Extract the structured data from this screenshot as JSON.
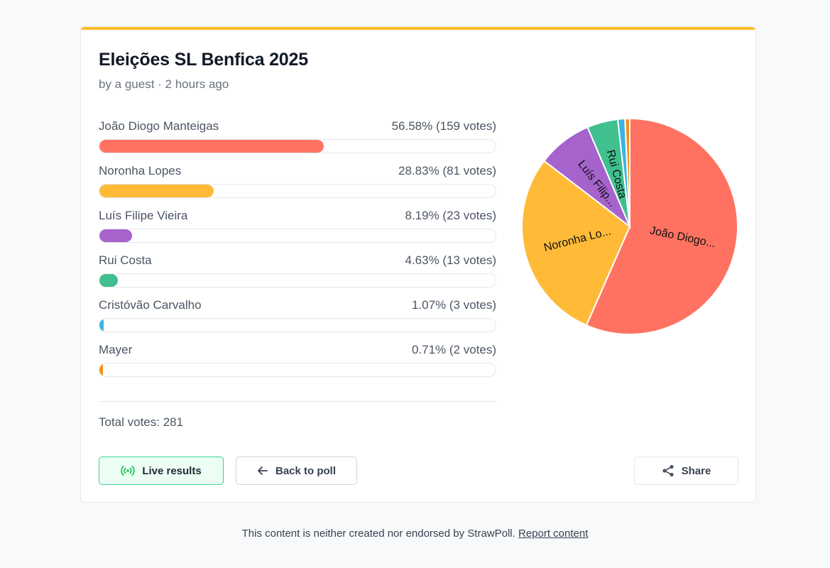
{
  "poll": {
    "title": "Eleições SL Benfica 2025",
    "subtitle": "by a guest · 2 hours ago",
    "accent_color": "#fbbf24",
    "total_label": "Total votes: 281"
  },
  "options": [
    {
      "name": "João Diogo Manteigas",
      "stats": "56.58% (159 votes)",
      "percent": 56.58,
      "votes": 159,
      "color": "#ff7262",
      "pie_label": "João Diogo..."
    },
    {
      "name": "Noronha Lopes",
      "stats": "28.83% (81 votes)",
      "percent": 28.83,
      "votes": 81,
      "color": "#ffbb38",
      "pie_label": "Noronha Lo..."
    },
    {
      "name": "Luís Filipe Vieira",
      "stats": "8.19% (23 votes)",
      "percent": 8.19,
      "votes": 23,
      "color": "#a663cc",
      "pie_label": "Luís Filip..."
    },
    {
      "name": "Rui Costa",
      "stats": "4.63% (13 votes)",
      "percent": 4.63,
      "votes": 13,
      "color": "#40bf8f",
      "pie_label": "Rui Costa"
    },
    {
      "name": "Cristóvão Carvalho",
      "stats": "1.07% (3 votes)",
      "percent": 1.07,
      "votes": 3,
      "color": "#3ab4e6",
      "pie_label": ""
    },
    {
      "name": "Mayer",
      "stats": "0.71% (2 votes)",
      "percent": 0.71,
      "votes": 2,
      "color": "#f7901e",
      "pie_label": ""
    }
  ],
  "chart_data": {
    "type": "pie",
    "title": "",
    "categories": [
      "João Diogo Manteigas",
      "Noronha Lopes",
      "Luís Filipe Vieira",
      "Rui Costa",
      "Cristóvão Carvalho",
      "Mayer"
    ],
    "values": [
      159,
      81,
      23,
      13,
      3,
      2
    ],
    "slice_labels": [
      "João Diogo...",
      "Noronha Lo...",
      "Luís Filip...",
      "Rui Costa",
      "",
      ""
    ]
  },
  "buttons": {
    "live": "Live results",
    "back": "Back to poll",
    "share": "Share"
  },
  "footer": {
    "text": "This content is neither created nor endorsed by StrawPoll.",
    "report_link": "Report content"
  }
}
